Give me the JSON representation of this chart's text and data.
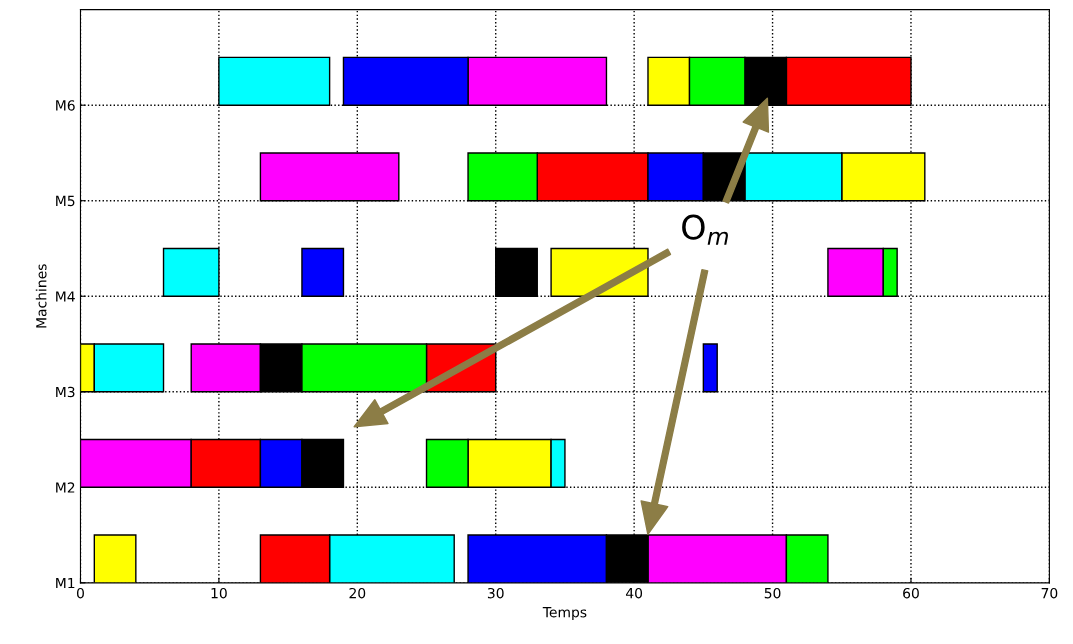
{
  "chart_data": {
    "type": "bar",
    "orientation": "horizontal",
    "xlabel": "Temps",
    "ylabel": "Machines",
    "categories": [
      "M6",
      "M5",
      "M4",
      "M3",
      "M2",
      "M1"
    ],
    "series": [
      {
        "color": "#ffff00",
        "base": [
          41,
          55,
          34,
          0,
          28,
          1
        ],
        "values": [
          3,
          6,
          7,
          1,
          6,
          3
        ]
      },
      {
        "color": "#00ffff",
        "base": [
          10,
          48,
          6,
          1,
          34,
          18
        ],
        "values": [
          8,
          7,
          4,
          5,
          1,
          9
        ]
      },
      {
        "color": "#ff00ff",
        "base": [
          28,
          13,
          54,
          8,
          0,
          41
        ],
        "values": [
          10,
          10,
          4,
          5,
          8,
          10
        ]
      },
      {
        "color": "#ff0000",
        "base": [
          51,
          33,
          null,
          25,
          8,
          13
        ],
        "values": [
          9,
          8,
          null,
          5,
          5,
          5
        ]
      },
      {
        "color": "#0000ff",
        "base": [
          19,
          41,
          16,
          45,
          13,
          28
        ],
        "values": [
          9,
          4,
          3,
          1,
          3,
          10
        ]
      },
      {
        "color": "#000000",
        "base": [
          48,
          45,
          30,
          13,
          16,
          38
        ],
        "values": [
          3,
          3,
          3,
          3,
          3,
          3
        ]
      },
      {
        "color": "#00ff00",
        "base": [
          44,
          28,
          58,
          16,
          25,
          51
        ],
        "values": [
          4,
          5,
          1,
          9,
          3,
          3
        ]
      }
    ],
    "xlim": [
      0,
      70
    ],
    "xticks": [
      0,
      10,
      20,
      30,
      40,
      50,
      60,
      70
    ],
    "grid": true,
    "line_style": "dotted",
    "annotations": [
      "O$_{m}$"
    ]
  }
}
